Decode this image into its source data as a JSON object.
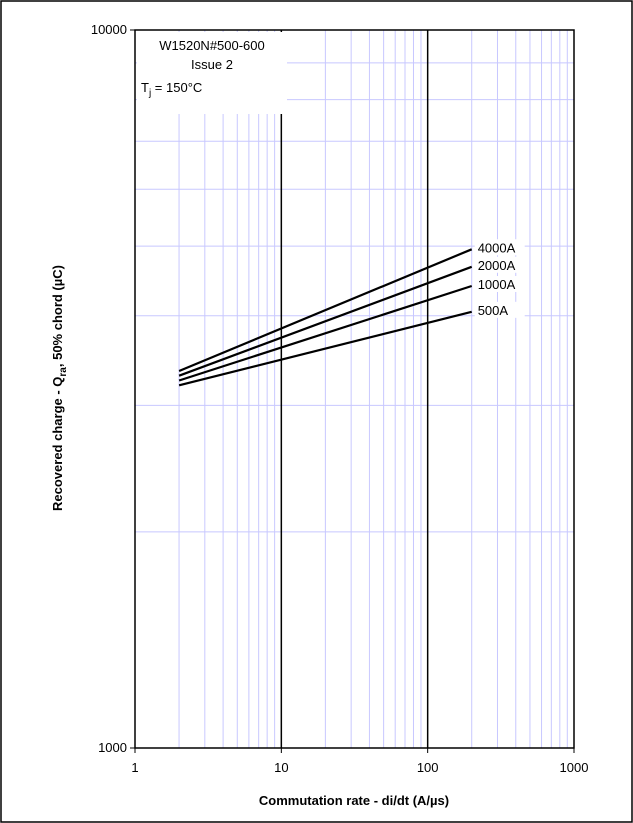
{
  "chart_data": {
    "type": "line",
    "x_scale": "log",
    "y_scale": "log",
    "xlim": [
      1,
      1000
    ],
    "ylim": [
      1000,
      10000
    ],
    "x_ticks": [
      "1",
      "10",
      "100",
      "1000"
    ],
    "y_ticks": [
      "1000",
      "10000"
    ],
    "xlabel": "Commutation rate - di/dt (A/µs)",
    "ylabel": {
      "main": "Recovered charge - Q",
      "sub": "ra",
      "suffix": ", 50% chord (µC)"
    },
    "grid": true,
    "annotation": {
      "line1": "W1520N#500-600",
      "line2": "Issue 2",
      "line3_main": "T",
      "line3_sub": "j",
      "line3_suffix": " = 150°C"
    },
    "series": [
      {
        "name": "4000A",
        "x": [
          2,
          200
        ],
        "y": [
          3350,
          4950
        ]
      },
      {
        "name": "2000A",
        "x": [
          2,
          200
        ],
        "y": [
          3300,
          4680
        ]
      },
      {
        "name": "1000A",
        "x": [
          2,
          200
        ],
        "y": [
          3250,
          4400
        ]
      },
      {
        "name": "500A",
        "x": [
          2,
          200
        ],
        "y": [
          3200,
          4050
        ]
      }
    ]
  },
  "colors": {
    "grid_minor": "#c8c8ff",
    "grid_major": "#000000",
    "line": "#000000"
  }
}
